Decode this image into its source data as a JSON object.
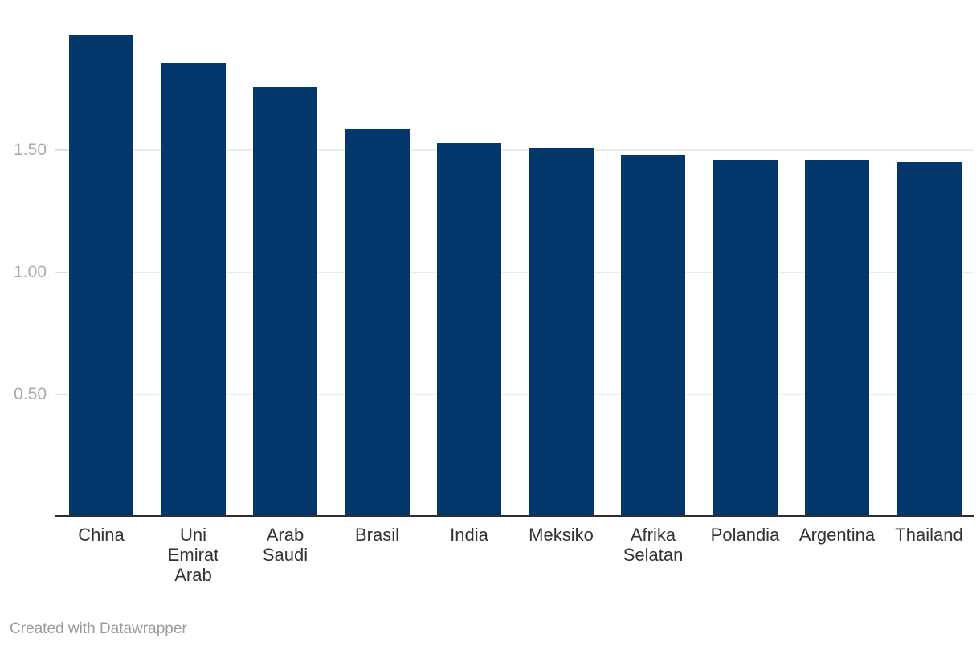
{
  "chart_data": {
    "type": "bar",
    "categories": [
      "China",
      "Uni Emirat Arab",
      "Arab Saudi",
      "Brasil",
      "India",
      "Meksiko",
      "Afrika Selatan",
      "Polandia",
      "Argentina",
      "Thailand"
    ],
    "values": [
      1.97,
      1.86,
      1.76,
      1.59,
      1.53,
      1.51,
      1.48,
      1.46,
      1.46,
      1.45
    ],
    "label_lines": [
      [
        "China"
      ],
      [
        "Uni",
        "Emirat",
        "Arab"
      ],
      [
        "Arab",
        "Saudi"
      ],
      [
        "Brasil"
      ],
      [
        "India"
      ],
      [
        "Meksiko"
      ],
      [
        "Afrika",
        "Selatan"
      ],
      [
        "Polandia"
      ],
      [
        "Argentina"
      ],
      [
        "Thailand"
      ]
    ],
    "title": "",
    "xlabel": "",
    "ylabel": "",
    "ylim": [
      0,
      2.0
    ],
    "yticks": [
      {
        "value": 0.5,
        "label": "0.50"
      },
      {
        "value": 1.0,
        "label": "1.00"
      },
      {
        "value": 1.5,
        "label": "1.50"
      }
    ],
    "grid": "horizontal",
    "legend": "none"
  },
  "colors": {
    "bar": "#04386c",
    "axis_line": "#2e2e2e",
    "gridline": "#ececec",
    "tick_dash": "#dddddd",
    "ytick_label": "#aaaaaa",
    "xtick_label": "#333333",
    "footer_text": "#9b9b9b",
    "background": "#ffffff"
  },
  "footer": {
    "text": "Created with Datawrapper"
  }
}
